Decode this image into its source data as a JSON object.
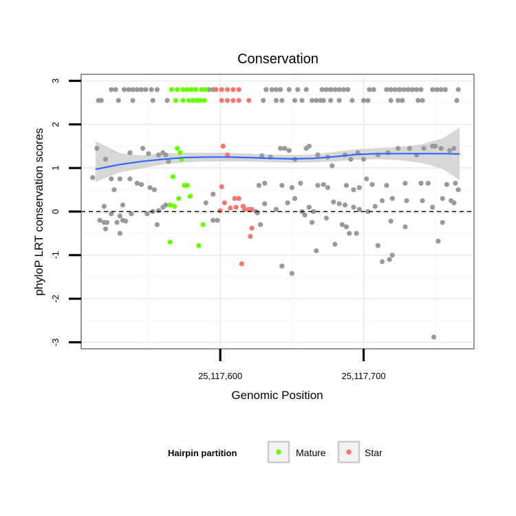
{
  "chart_data": {
    "type": "scatter",
    "title": "Conservation",
    "xlabel": "Genomic Position",
    "ylabel": "phyloP LRT conservation scores",
    "x_ticks": [
      {
        "value": 25117600,
        "label": "25,117,600"
      },
      {
        "value": 25117700,
        "label": "25,117,700"
      }
    ],
    "y_ticks": [
      {
        "value": -3,
        "label": "-3"
      },
      {
        "value": -2,
        "label": "-2"
      },
      {
        "value": -1,
        "label": "-1"
      },
      {
        "value": 0,
        "label": "0"
      },
      {
        "value": 1,
        "label": "1"
      },
      {
        "value": 2,
        "label": "2"
      },
      {
        "value": 3,
        "label": "3"
      }
    ],
    "xlim": [
      25117503,
      25117777
    ],
    "ylim": [
      -3.15,
      3.15
    ],
    "grid": true,
    "reference_line": {
      "y": 0,
      "style": "dashed",
      "color": "#000000"
    },
    "legend": {
      "title": "Hairpin partition",
      "position": "bottom",
      "entries": [
        {
          "label": "Mature",
          "color": "#66ff00"
        },
        {
          "label": "Star",
          "color": "#f8766d"
        }
      ]
    },
    "colors": {
      "other": "#999999",
      "mature": "#66ff00",
      "star": "#f8766d",
      "smooth_line": "#3366ff",
      "confidence_band": "#cccccc"
    },
    "series": [
      {
        "name": "Mature",
        "points": [
          [
            25117566,
            2.8
          ],
          [
            25117570,
            2.8
          ],
          [
            25117574,
            2.8
          ],
          [
            25117577,
            2.8
          ],
          [
            25117580,
            2.8
          ],
          [
            25117583,
            2.8
          ],
          [
            25117587,
            2.8
          ],
          [
            25117590,
            2.8
          ],
          [
            25117569,
            2.55
          ],
          [
            25117574,
            2.55
          ],
          [
            25117578,
            2.55
          ],
          [
            25117581,
            2.55
          ],
          [
            25117584,
            2.55
          ],
          [
            25117586,
            2.55
          ],
          [
            25117589,
            2.55
          ],
          [
            25117570,
            1.45
          ],
          [
            25117572,
            1.35
          ],
          [
            25117573,
            1.2
          ],
          [
            25117567,
            0.8
          ],
          [
            25117575,
            0.6
          ],
          [
            25117577,
            0.6
          ],
          [
            25117571,
            0.3
          ],
          [
            25117579,
            0.35
          ],
          [
            25117565,
            0.15
          ],
          [
            25117568,
            0.12
          ],
          [
            25117588,
            -0.3
          ],
          [
            25117565,
            -0.7
          ],
          [
            25117585,
            -0.78
          ]
        ]
      },
      {
        "name": "Star",
        "points": [
          [
            25117597,
            2.8
          ],
          [
            25117601,
            2.8
          ],
          [
            25117605,
            2.8
          ],
          [
            25117609,
            2.8
          ],
          [
            25117613,
            2.8
          ],
          [
            25117601,
            2.55
          ],
          [
            25117605,
            2.55
          ],
          [
            25117609,
            2.55
          ],
          [
            25117613,
            2.55
          ],
          [
            25117620,
            2.55
          ],
          [
            25117602,
            1.5
          ],
          [
            25117605,
            1.3
          ],
          [
            25117601,
            0.57
          ],
          [
            25117610,
            0.3
          ],
          [
            25117613,
            0.3
          ],
          [
            25117603,
            0.2
          ],
          [
            25117611,
            0.1
          ],
          [
            25117616,
            0.12
          ],
          [
            25117620,
            0.05
          ],
          [
            25117607,
            0.08
          ],
          [
            25117617,
            0.05
          ],
          [
            25117622,
            0.05
          ],
          [
            25117600,
            0.02
          ],
          [
            25117622,
            -0.38
          ],
          [
            25117621,
            -0.57
          ],
          [
            25117615,
            -1.2
          ]
        ]
      },
      {
        "points": [
          [
            25117524,
            2.8
          ],
          [
            25117527,
            2.8
          ],
          [
            25117533,
            2.8
          ],
          [
            25117536,
            2.8
          ],
          [
            25117539,
            2.8
          ],
          [
            25117542,
            2.8
          ],
          [
            25117545,
            2.8
          ],
          [
            25117548,
            2.8
          ],
          [
            25117552,
            2.8
          ],
          [
            25117556,
            2.8
          ],
          [
            25117592,
            2.8
          ],
          [
            25117595,
            2.8
          ],
          [
            25117632,
            2.8
          ],
          [
            25117636,
            2.8
          ],
          [
            25117639,
            2.8
          ],
          [
            25117642,
            2.8
          ],
          [
            25117648,
            2.8
          ],
          [
            25117654,
            2.8
          ],
          [
            25117660,
            2.8
          ],
          [
            25117671,
            2.8
          ],
          [
            25117674,
            2.8
          ],
          [
            25117677,
            2.8
          ],
          [
            25117680,
            2.8
          ],
          [
            25117683,
            2.8
          ],
          [
            25117686,
            2.8
          ],
          [
            25117689,
            2.8
          ],
          [
            25117704,
            2.8
          ],
          [
            25117707,
            2.8
          ],
          [
            25117716,
            2.8
          ],
          [
            25117719,
            2.8
          ],
          [
            25117722,
            2.8
          ],
          [
            25117725,
            2.8
          ],
          [
            25117728,
            2.8
          ],
          [
            25117731,
            2.8
          ],
          [
            25117734,
            2.8
          ],
          [
            25117737,
            2.8
          ],
          [
            25117740,
            2.8
          ],
          [
            25117748,
            2.8
          ],
          [
            25117751,
            2.8
          ],
          [
            25117754,
            2.8
          ],
          [
            25117757,
            2.8
          ],
          [
            25117766,
            2.8
          ],
          [
            25117515,
            2.55
          ],
          [
            25117517,
            2.55
          ],
          [
            25117529,
            2.55
          ],
          [
            25117539,
            2.55
          ],
          [
            25117553,
            2.55
          ],
          [
            25117563,
            2.55
          ],
          [
            25117630,
            2.55
          ],
          [
            25117639,
            2.55
          ],
          [
            25117643,
            2.55
          ],
          [
            25117652,
            2.55
          ],
          [
            25117657,
            2.55
          ],
          [
            25117664,
            2.55
          ],
          [
            25117667,
            2.55
          ],
          [
            25117670,
            2.55
          ],
          [
            25117672,
            2.55
          ],
          [
            25117677,
            2.55
          ],
          [
            25117683,
            2.55
          ],
          [
            25117692,
            2.55
          ],
          [
            25117700,
            2.55
          ],
          [
            25117703,
            2.55
          ],
          [
            25117719,
            2.55
          ],
          [
            25117724,
            2.55
          ],
          [
            25117727,
            2.55
          ],
          [
            25117738,
            2.55
          ],
          [
            25117741,
            2.55
          ],
          [
            25117765,
            2.55
          ],
          [
            25117514,
            1.45
          ],
          [
            25117537,
            1.35
          ],
          [
            25117546,
            1.45
          ],
          [
            25117550,
            1.33
          ],
          [
            25117557,
            1.3
          ],
          [
            25117560,
            1.35
          ],
          [
            25117562,
            1.3
          ],
          [
            25117564,
            1.15
          ],
          [
            25117520,
            1.2
          ],
          [
            25117629,
            1.28
          ],
          [
            25117635,
            1.25
          ],
          [
            25117642,
            1.45
          ],
          [
            25117645,
            1.45
          ],
          [
            25117648,
            1.4
          ],
          [
            25117652,
            1.2
          ],
          [
            25117660,
            1.45
          ],
          [
            25117662,
            1.5
          ],
          [
            25117668,
            1.3
          ],
          [
            25117675,
            1.25
          ],
          [
            25117678,
            1.05
          ],
          [
            25117687,
            1.3
          ],
          [
            25117691,
            1.2
          ],
          [
            25117696,
            1.35
          ],
          [
            25117700,
            1.2
          ],
          [
            25117710,
            1.3
          ],
          [
            25117717,
            1.35
          ],
          [
            25117724,
            1.45
          ],
          [
            25117732,
            1.45
          ],
          [
            25117737,
            1.3
          ],
          [
            25117742,
            1.45
          ],
          [
            25117748,
            1.5
          ],
          [
            25117750,
            1.5
          ],
          [
            25117754,
            1.45
          ],
          [
            25117760,
            1.4
          ],
          [
            25117763,
            1.45
          ],
          [
            25117511,
            0.78
          ],
          [
            25117524,
            0.75
          ],
          [
            25117530,
            0.75
          ],
          [
            25117537,
            0.75
          ],
          [
            25117542,
            0.65
          ],
          [
            25117545,
            0.62
          ],
          [
            25117551,
            0.55
          ],
          [
            25117554,
            0.5
          ],
          [
            25117526,
            0.5
          ],
          [
            25117627,
            0.6
          ],
          [
            25117631,
            0.65
          ],
          [
            25117643,
            0.6
          ],
          [
            25117650,
            0.55
          ],
          [
            25117656,
            0.65
          ],
          [
            25117668,
            0.6
          ],
          [
            25117672,
            0.62
          ],
          [
            25117675,
            0.55
          ],
          [
            25117688,
            0.6
          ],
          [
            25117693,
            0.5
          ],
          [
            25117697,
            0.55
          ],
          [
            25117702,
            0.75
          ],
          [
            25117706,
            0.62
          ],
          [
            25117716,
            0.6
          ],
          [
            25117729,
            0.65
          ],
          [
            25117740,
            0.65
          ],
          [
            25117745,
            0.65
          ],
          [
            25117758,
            0.62
          ],
          [
            25117764,
            0.65
          ],
          [
            25117766,
            0.5
          ],
          [
            25117519,
            0.12
          ],
          [
            25117532,
            0.15
          ],
          [
            25117524,
            -0.05
          ],
          [
            25117530,
            -0.1
          ],
          [
            25117538,
            -0.05
          ],
          [
            25117549,
            -0.05
          ],
          [
            25117553,
            0.0
          ],
          [
            25117557,
            0.02
          ],
          [
            25117560,
            0.1
          ],
          [
            25117562,
            0.15
          ],
          [
            25117595,
            0.4
          ],
          [
            25117590,
            0.2
          ],
          [
            25117625,
            0.0
          ],
          [
            25117631,
            0.18
          ],
          [
            25117639,
            0.05
          ],
          [
            25117647,
            0.2
          ],
          [
            25117652,
            0.3
          ],
          [
            25117657,
            0.0
          ],
          [
            25117662,
            0.1
          ],
          [
            25117665,
            0.0
          ],
          [
            25117679,
            0.22
          ],
          [
            25117683,
            0.18
          ],
          [
            25117687,
            0.15
          ],
          [
            25117693,
            0.1
          ],
          [
            25117697,
            0.05
          ],
          [
            25117703,
            0.0
          ],
          [
            25117708,
            0.12
          ],
          [
            25117713,
            0.25
          ],
          [
            25117720,
            0.3
          ],
          [
            25117730,
            0.25
          ],
          [
            25117741,
            0.25
          ],
          [
            25117748,
            0.1
          ],
          [
            25117755,
            0.3
          ],
          [
            25117761,
            0.25
          ],
          [
            25117763,
            0.2
          ],
          [
            25117516,
            -0.2
          ],
          [
            25117519,
            -0.25
          ],
          [
            25117521,
            -0.25
          ],
          [
            25117520,
            -0.4
          ],
          [
            25117528,
            -0.25
          ],
          [
            25117532,
            -0.2
          ],
          [
            25117534,
            -0.22
          ],
          [
            25117556,
            -0.3
          ],
          [
            25117530,
            -0.5
          ],
          [
            25117595,
            -0.2
          ],
          [
            25117598,
            -0.2
          ],
          [
            25117626,
            -0.03
          ],
          [
            25117628,
            -0.3
          ],
          [
            25117659,
            -0.08
          ],
          [
            25117664,
            -0.25
          ],
          [
            25117674,
            -0.15
          ],
          [
            25117685,
            -0.3
          ],
          [
            25117688,
            -0.35
          ],
          [
            25117690,
            -0.5
          ],
          [
            25117695,
            -0.5
          ],
          [
            25117719,
            -0.22
          ],
          [
            25117729,
            -0.35
          ],
          [
            25117755,
            -0.25
          ],
          [
            25117667,
            -0.9
          ],
          [
            25117680,
            -0.75
          ],
          [
            25117710,
            -0.78
          ],
          [
            25117718,
            -1.1
          ],
          [
            25117720,
            -1.0
          ],
          [
            25117713,
            -1.15
          ],
          [
            25117643,
            -1.25
          ],
          [
            25117650,
            -1.42
          ],
          [
            25117752,
            -0.68
          ],
          [
            25117749,
            -2.88
          ]
        ]
      }
    ],
    "smooth": {
      "x": [
        25117513,
        25117530,
        25117545,
        25117560,
        25117575,
        25117590,
        25117605,
        25117620,
        25117635,
        25117650,
        25117665,
        25117680,
        25117695,
        25117710,
        25117725,
        25117740,
        25117755,
        25117767
      ],
      "y": [
        0.97,
        1.08,
        1.15,
        1.2,
        1.24,
        1.25,
        1.25,
        1.24,
        1.22,
        1.21,
        1.22,
        1.26,
        1.31,
        1.33,
        1.33,
        1.33,
        1.33,
        1.32
      ],
      "lower": [
        0.68,
        0.9,
        0.99,
        1.08,
        1.13,
        1.15,
        1.15,
        1.15,
        1.13,
        1.12,
        1.13,
        1.15,
        1.19,
        1.2,
        1.18,
        1.12,
        0.98,
        0.72
      ],
      "upper": [
        1.62,
        1.34,
        1.29,
        1.33,
        1.35,
        1.35,
        1.35,
        1.33,
        1.31,
        1.3,
        1.31,
        1.37,
        1.43,
        1.46,
        1.48,
        1.54,
        1.68,
        1.93
      ]
    }
  }
}
